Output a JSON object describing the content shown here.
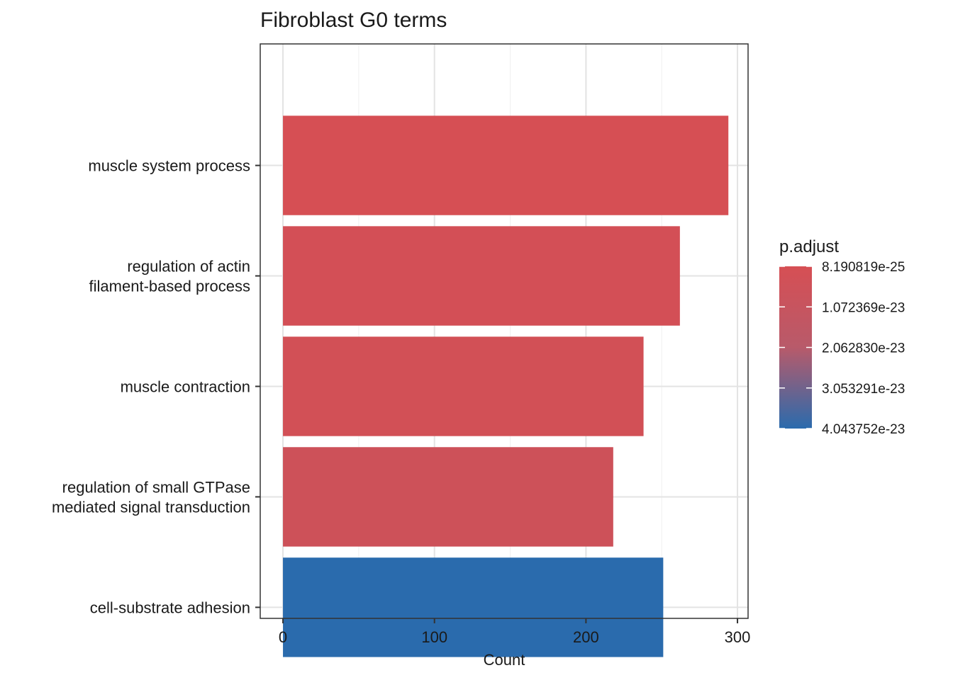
{
  "chart_data": {
    "type": "bar",
    "orientation": "horizontal",
    "title": "Fibroblast G0 terms",
    "xlabel": "Count",
    "ylabel": "",
    "xlim": [
      -15,
      307
    ],
    "x_ticks": [
      0,
      100,
      200,
      300
    ],
    "grid": true,
    "categories": [
      [
        "muscle system process"
      ],
      [
        "regulation of actin",
        "filament-based process"
      ],
      [
        "muscle contraction"
      ],
      [
        "regulation of small GTPase",
        "mediated signal transduction"
      ],
      [
        "cell-substrate adhesion"
      ]
    ],
    "values": [
      294,
      262,
      238,
      218,
      251
    ],
    "p_adjust": [
      8.190819e-25,
      1.5e-24,
      1.8e-24,
      3e-24,
      4.043752e-23
    ],
    "colorbar": {
      "title": "p.adjust",
      "low_color": "#d64f54",
      "high_color": "#2a6bad",
      "range": [
        8.190819e-25,
        4.043752e-23
      ],
      "tick_values": [
        8.190819e-25,
        1.072369e-23,
        2.06283e-23,
        3.053291e-23,
        4.043752e-23
      ],
      "tick_labels": [
        "8.190819e-25",
        "1.072369e-23",
        "2.062830e-23",
        "3.053291e-23",
        "4.043752e-23"
      ],
      "placement": "right"
    }
  }
}
